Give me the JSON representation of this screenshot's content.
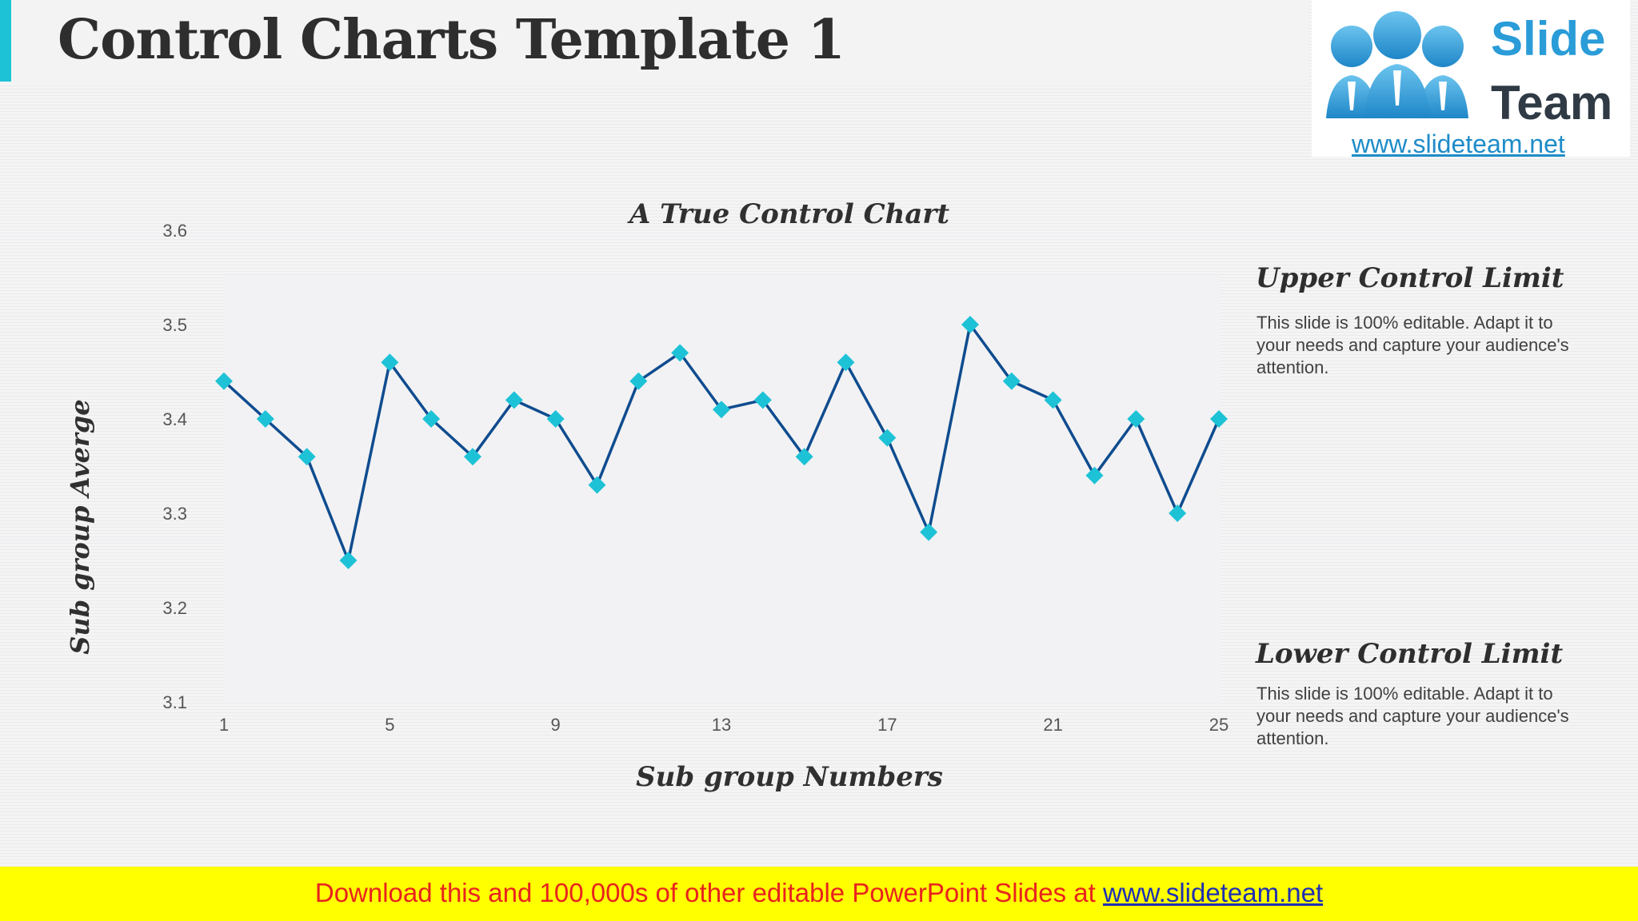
{
  "page": {
    "title": "Control Charts Template 1"
  },
  "logo": {
    "word1": "Slide",
    "word2": "Team",
    "url": "www.slideteam.net"
  },
  "side": {
    "upper_heading": "Upper Control Limit",
    "upper_text": "This slide is 100% editable. Adapt it to your needs and capture your audience's attention.",
    "lower_heading": "Lower Control Limit",
    "lower_text": "This slide is 100% editable. Adapt it to your needs and capture your audience's attention."
  },
  "footer": {
    "text": "Download this and 100,000s of other editable PowerPoint Slides at ",
    "link": "www.slideteam.net"
  },
  "colors": {
    "accent": "#1ec2d6",
    "line": "#0f4c8f",
    "marker": "#1ec2d6",
    "footer_bg": "#ffff00",
    "footer_text": "#e8231e"
  },
  "chart_data": {
    "type": "line",
    "title": "A True Control Chart",
    "xlabel": "Sub group Numbers",
    "ylabel": "Sub group Averge",
    "x": [
      1,
      2,
      3,
      4,
      5,
      6,
      7,
      8,
      9,
      10,
      11,
      12,
      13,
      14,
      15,
      16,
      17,
      18,
      19,
      20,
      21,
      22,
      23,
      24,
      25
    ],
    "xticks": [
      1,
      5,
      9,
      13,
      17,
      21,
      25
    ],
    "yticks": [
      "3.1",
      "3.2",
      "3.3",
      "3.4",
      "3.5",
      "3.6"
    ],
    "ylim": [
      3.1,
      3.6
    ],
    "xlim": [
      1,
      25
    ],
    "grid": false,
    "series": [
      {
        "values": [
          3.44,
          3.4,
          3.36,
          3.25,
          3.46,
          3.4,
          3.36,
          3.42,
          3.4,
          3.33,
          3.44,
          3.47,
          3.41,
          3.42,
          3.36,
          3.46,
          3.38,
          3.28,
          3.5,
          3.44,
          3.42,
          3.34,
          3.4,
          3.3,
          3.4
        ]
      }
    ]
  }
}
